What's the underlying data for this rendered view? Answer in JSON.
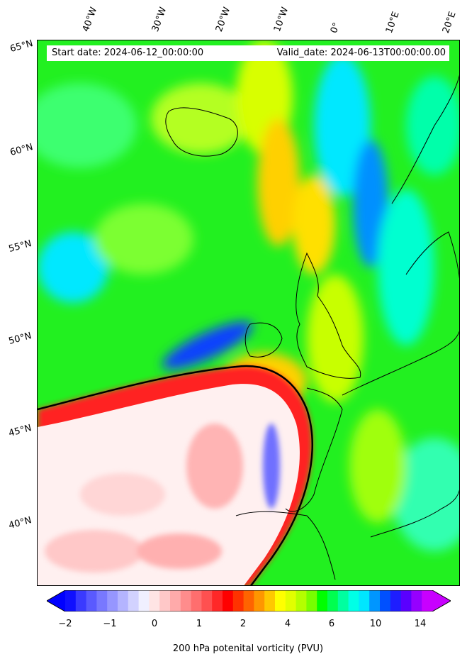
{
  "info": {
    "start_label": "Start date: 2024-06-12_00:00:00",
    "valid_label": "Valid_date: 2024-06-13T00:00:00.00"
  },
  "lon_labels": [
    "40°W",
    "30°W",
    "20°W",
    "10°W",
    "0°",
    "10°E",
    "20°E"
  ],
  "lat_labels": [
    "65°N",
    "60°N",
    "55°N",
    "50°N",
    "45°N",
    "40°N"
  ],
  "colorbar": {
    "label": "200 hPa potenital vorticity (PVU)",
    "ticks": [
      "−2",
      "−1",
      "0",
      "1",
      "2",
      "4",
      "6",
      "10",
      "14"
    ],
    "colors": [
      "#1010ff",
      "#3a3aff",
      "#5a5aff",
      "#7878ff",
      "#9696ff",
      "#b4b4ff",
      "#d2d2ff",
      "#f0f0ff",
      "#ffe4e4",
      "#ffc8c8",
      "#ffaaaa",
      "#ff8c8c",
      "#ff6e6e",
      "#ff5050",
      "#ff2828",
      "#ff0000",
      "#ff3200",
      "#ff6400",
      "#ff9600",
      "#ffc800",
      "#ffff00",
      "#e1ff00",
      "#b4ff00",
      "#78ff00",
      "#00ff00",
      "#00ff50",
      "#00ffa0",
      "#00ffe6",
      "#00e6ff",
      "#0096ff",
      "#0050ff",
      "#1e1eff",
      "#5a00ff",
      "#9600ff",
      "#c800ff"
    ],
    "under_color": "#0000ff",
    "over_color": "#c800ff"
  }
}
